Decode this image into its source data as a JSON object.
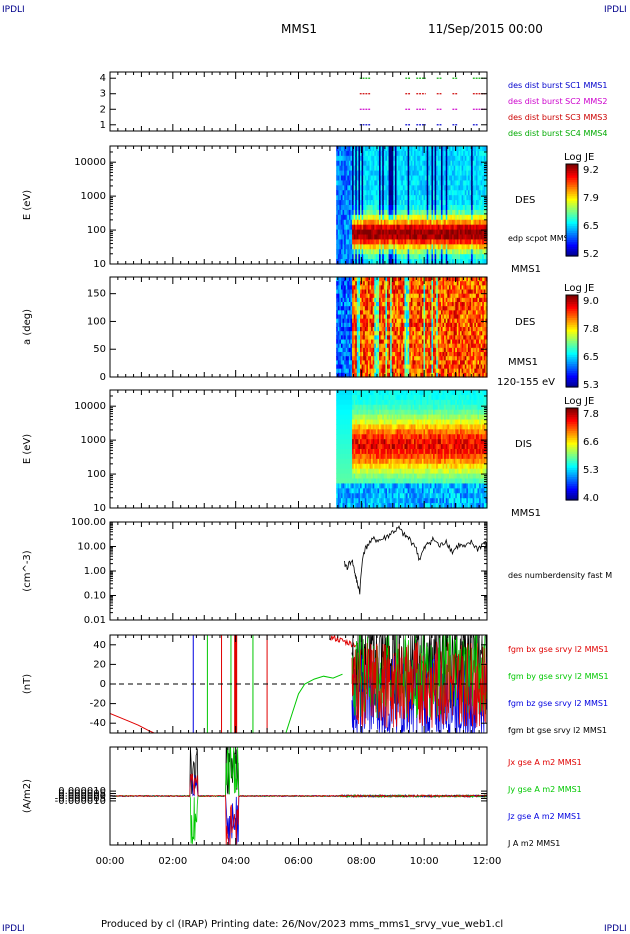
{
  "corners": {
    "tl": "IPDLI",
    "tr": "IPDLI",
    "bl": "IPDLI",
    "br": "IPDLI"
  },
  "header": {
    "spacecraft": "MMS1",
    "date": "11/Sep/2015 00:00"
  },
  "footer": {
    "text": "Produced by cl (IRAP)   Printing date: 26/Nov/2023   mms_mms1_srvy_vue_web1.cl"
  },
  "x_axis": {
    "start_hours": 0,
    "end_hours": 12,
    "tick_labels": [
      "00:00",
      "02:00",
      "04:00",
      "06:00",
      "08:00",
      "10:00",
      "12:00"
    ]
  },
  "colors": {
    "des_c1": "#0000cc",
    "des_c2": "#cc00cc",
    "des_c3": "#cc0000",
    "des_c4": "#00aa00",
    "bx": "#e00000",
    "by": "#00c800",
    "bz": "#0000e0",
    "bt": "#000000"
  },
  "chart_data": [
    {
      "type": "scatter",
      "id": "availability",
      "yticks": [
        "1",
        "2",
        "3",
        "4"
      ],
      "ylim": [
        0.6,
        4.4
      ],
      "legend": [
        "des dist burst SC1 MMS1",
        "des dist burst SC2 MMS2",
        "des dist burst SC3 MMS3",
        "des dist burst SC4 MMS4"
      ],
      "series": [
        {
          "y": 1,
          "color": "#0000cc",
          "intervals": [
            [
              7.95,
              8.3
            ],
            [
              9.4,
              9.55
            ],
            [
              9.75,
              10.05
            ],
            [
              10.4,
              10.55
            ],
            [
              10.9,
              11.05
            ],
            [
              11.55,
              11.7
            ]
          ]
        },
        {
          "y": 2,
          "color": "#cc00cc",
          "intervals": [
            [
              7.95,
              8.3
            ],
            [
              9.4,
              9.55
            ],
            [
              9.75,
              10.05
            ],
            [
              10.4,
              10.55
            ],
            [
              10.9,
              11.05
            ],
            [
              11.55,
              11.95
            ]
          ]
        },
        {
          "y": 3,
          "color": "#cc0000",
          "intervals": [
            [
              7.95,
              8.3
            ],
            [
              9.4,
              9.55
            ],
            [
              9.75,
              10.05
            ],
            [
              10.4,
              10.55
            ],
            [
              10.9,
              11.05
            ],
            [
              11.55,
              11.95
            ]
          ]
        },
        {
          "y": 4,
          "color": "#00aa00",
          "intervals": [
            [
              7.95,
              8.3
            ],
            [
              9.4,
              9.55
            ],
            [
              9.75,
              10.05
            ],
            [
              10.4,
              10.55
            ],
            [
              10.9,
              11.05
            ],
            [
              11.55,
              11.95
            ]
          ]
        }
      ]
    },
    {
      "type": "heatmap",
      "id": "des-energy",
      "ylabel": "E (eV)",
      "log_y": true,
      "ylim": [
        10,
        30000
      ],
      "yticks": [
        "10",
        "100",
        "1000",
        "10000"
      ],
      "label": "DES",
      "sublabel": "edp scpot MMS1",
      "bottom_label": "MMS1",
      "colorbar": {
        "title": "Log JE",
        "ticks": [
          "9.2",
          "7.9",
          "6.5",
          "5.2"
        ]
      },
      "data_start": 7.2,
      "data_end": 12.0
    },
    {
      "type": "heatmap",
      "id": "des-pitch",
      "ylabel": "a (deg)",
      "ylim": [
        0,
        180
      ],
      "yticks": [
        "0",
        "50",
        "100",
        "150"
      ],
      "label": "DES",
      "sublabel": "MMS1",
      "bottom_label": "120-155 eV",
      "colorbar": {
        "title": "Log JE",
        "ticks": [
          "9.0",
          "7.8",
          "6.5",
          "5.3"
        ]
      },
      "data_start": 7.2,
      "data_end": 12.0
    },
    {
      "type": "heatmap",
      "id": "dis-energy",
      "ylabel": "E (eV)",
      "log_y": true,
      "ylim": [
        10,
        30000
      ],
      "yticks": [
        "10",
        "100",
        "1000",
        "10000"
      ],
      "label": "DIS",
      "bottom_label": "MMS1",
      "colorbar": {
        "title": "Log JE",
        "ticks": [
          "7.8",
          "6.6",
          "5.3",
          "4.0"
        ]
      },
      "data_start": 7.2,
      "data_end": 12.0
    },
    {
      "type": "line",
      "id": "density",
      "ylabel": "(cm^-3)",
      "log_y": true,
      "ylim": [
        0.01,
        100
      ],
      "yticks": [
        "0.01",
        "0.10",
        "1.00",
        "10.00",
        "100.00"
      ],
      "series": [
        {
          "name": "des numberdensity fast M",
          "color": "#000000",
          "x": [
            7.45,
            7.55,
            7.7,
            7.8,
            7.85,
            7.95,
            8.05,
            8.2,
            8.4,
            8.6,
            8.8,
            9.0,
            9.2,
            9.35,
            9.5,
            9.7,
            9.85,
            10.0,
            10.15,
            10.3,
            10.5,
            10.7,
            10.9,
            11.1,
            11.3,
            11.5,
            11.7,
            11.9,
            12.0
          ],
          "y": [
            2.0,
            1.5,
            3.0,
            0.8,
            0.4,
            0.15,
            5.0,
            12,
            20,
            18,
            25,
            40,
            55,
            30,
            22,
            12,
            3,
            8,
            15,
            20,
            10,
            18,
            6,
            12,
            9,
            15,
            8,
            14,
            12
          ]
        }
      ]
    },
    {
      "type": "line",
      "id": "fgm",
      "ylabel": "(nT)",
      "ylim": [
        -50,
        50
      ],
      "yticks": [
        "-40",
        "-20",
        "0",
        "20",
        "40"
      ],
      "series": [
        {
          "name": "fgm bx gse srvy l2 MMS1",
          "color": "#e00000",
          "x": [
            0,
            0.3,
            0.6,
            0.9,
            1.2,
            1.4
          ],
          "y": [
            -30,
            -34,
            -38,
            -42,
            -47,
            -50
          ]
        },
        {
          "name": "fgm by gse srvy l2 MMS1",
          "color": "#00c800",
          "x": [
            5.6,
            5.8,
            6.0,
            6.2,
            6.5,
            6.8,
            7.1,
            7.4
          ],
          "y": [
            -50,
            -30,
            -10,
            0,
            5,
            8,
            6,
            10
          ]
        },
        {
          "name": "fgm bz gse srvy l2 MMS1",
          "color": "#0000e0",
          "x": [],
          "y": []
        },
        {
          "name": "fgm bt gse srvy l2 MMS1",
          "color": "#000000",
          "x": [],
          "y": []
        }
      ]
    },
    {
      "type": "line",
      "id": "current",
      "ylabel": "(A/m2)",
      "ylim": [
        -0.0001,
        0.0001
      ],
      "yticks": [
        "-0.000010",
        "-0.000005",
        "0.000000",
        "0.000005",
        "0.000010"
      ],
      "series": [
        {
          "name": "Jx gse A m2 MMS1",
          "color": "#e00000",
          "x": [],
          "y": []
        },
        {
          "name": "Jy gse A m2 MMS1",
          "color": "#00c800",
          "x": [],
          "y": []
        },
        {
          "name": "Jz gse A m2 MMS1",
          "color": "#0000e0",
          "x": [],
          "y": []
        },
        {
          "name": "J A m2 MMS1",
          "color": "#000000",
          "x": [],
          "y": []
        }
      ]
    }
  ]
}
